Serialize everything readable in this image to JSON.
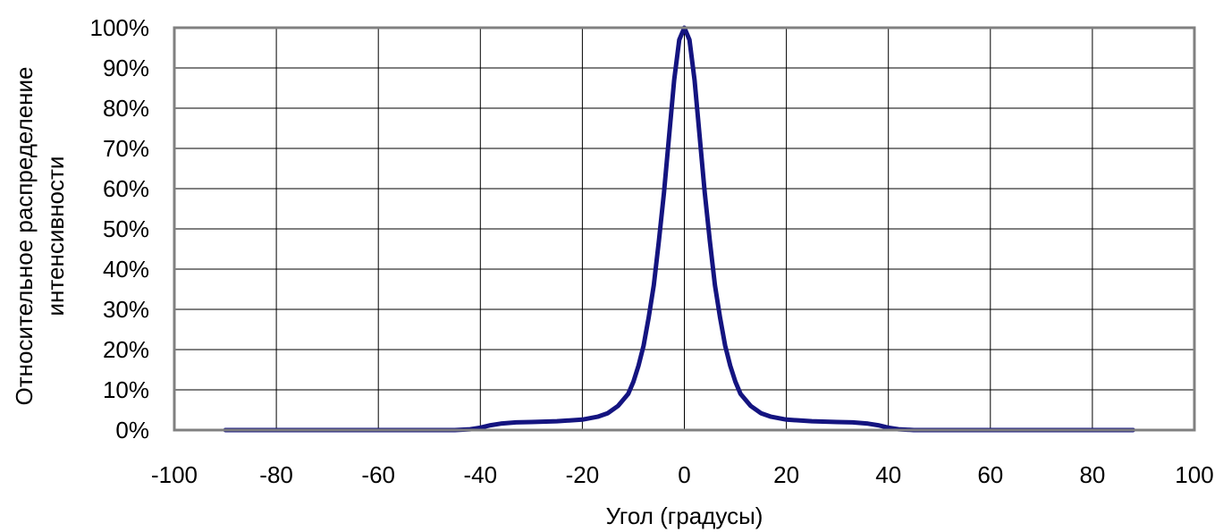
{
  "chart_data": {
    "type": "line",
    "title": "",
    "xlabel": "Угол (градусы)",
    "ylabel_lines": [
      "Относительное распределение",
      "интенсивности"
    ],
    "xlim": [
      -100,
      100
    ],
    "ylim": [
      0,
      100
    ],
    "x_ticks": [
      -100,
      -80,
      -60,
      -40,
      -20,
      0,
      20,
      40,
      60,
      80,
      100
    ],
    "x_tick_labels": [
      "-100",
      "-80",
      "-60",
      "-40",
      "-20",
      "0",
      "20",
      "40",
      "60",
      "80",
      "100"
    ],
    "y_ticks": [
      0,
      10,
      20,
      30,
      40,
      50,
      60,
      70,
      80,
      90,
      100
    ],
    "y_tick_labels": [
      "0%",
      "10%",
      "20%",
      "30%",
      "40%",
      "50%",
      "60%",
      "70%",
      "80%",
      "90%",
      "100%"
    ],
    "grid": true,
    "legend": "none",
    "series": [
      {
        "color": "#141480",
        "x": [
          -90,
          -60,
          -45,
          -42,
          -40,
          -38,
          -36,
          -33,
          -30,
          -25,
          -20,
          -17,
          -15,
          -13,
          -11,
          -10,
          -9,
          -8,
          -7,
          -6,
          -5,
          -4,
          -3,
          -2,
          -1,
          0,
          1,
          2,
          3,
          4,
          5,
          6,
          7,
          8,
          9,
          10,
          11,
          13,
          15,
          17,
          20,
          25,
          30,
          33,
          36,
          38,
          40,
          42,
          45,
          60,
          88
        ],
        "y": [
          0,
          0,
          0,
          0.2,
          0.6,
          1.2,
          1.6,
          1.9,
          2.0,
          2.2,
          2.6,
          3.3,
          4.2,
          6.0,
          9.0,
          12,
          16,
          21,
          28,
          36,
          47,
          59,
          73,
          87,
          97,
          100,
          97,
          87,
          73,
          59,
          47,
          36,
          28,
          21,
          16,
          12,
          9.0,
          6.0,
          4.2,
          3.3,
          2.6,
          2.2,
          2.0,
          1.9,
          1.6,
          1.2,
          0.6,
          0.2,
          0,
          0,
          0
        ]
      }
    ]
  },
  "colors": {
    "plot_border": "#808080",
    "grid": "#000000",
    "line": "#141480"
  }
}
